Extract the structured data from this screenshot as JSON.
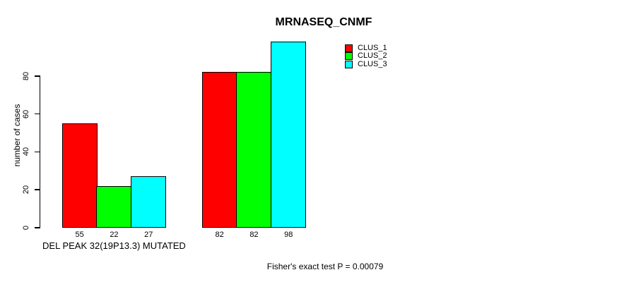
{
  "chart_data": {
    "type": "bar",
    "title": "MRNASEQ_CNMF",
    "ylabel": "number of cases",
    "categories": [
      "DEL PEAK 32(19P13.3) MUTATED",
      ""
    ],
    "series": [
      {
        "name": "CLUS_1",
        "color": "#ff0000",
        "values": [
          55,
          82
        ]
      },
      {
        "name": "CLUS_2",
        "color": "#00ff00",
        "values": [
          22,
          82
        ]
      },
      {
        "name": "CLUS_3",
        "color": "#00ffff",
        "values": [
          27,
          98
        ]
      }
    ],
    "bar_value_labels": [
      [
        55,
        22,
        27
      ],
      [
        82,
        82,
        98
      ]
    ],
    "yticks": [
      0,
      20,
      40,
      60,
      80
    ],
    "ylim": [
      0,
      98
    ],
    "grid": false,
    "legend": {
      "position": "top-right",
      "entries": [
        "CLUS_1",
        "CLUS_2",
        "CLUS_3"
      ]
    },
    "annotation": "Fisher's exact test P = 0.00079",
    "bar_border_color": "#000000",
    "axis_color": "#000000",
    "background": "#ffffff"
  }
}
